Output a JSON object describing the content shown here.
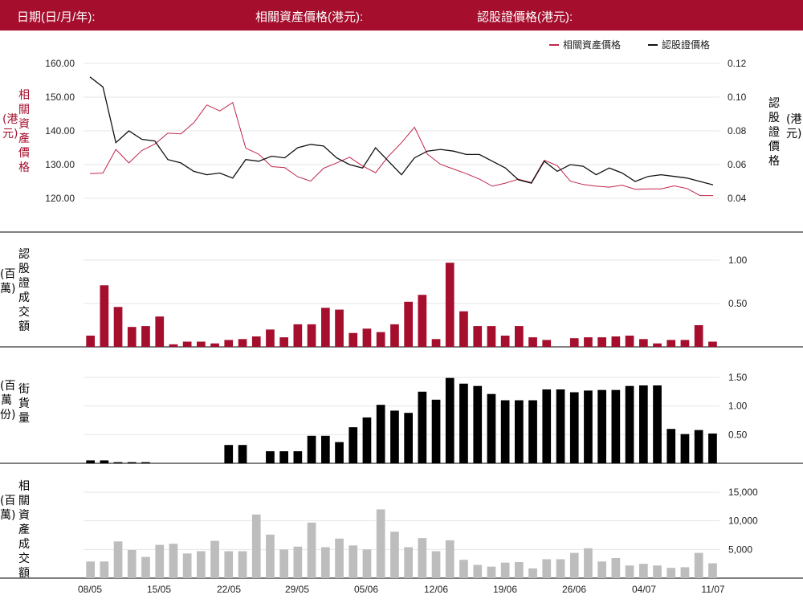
{
  "header": {
    "date_label": "日期(日/月/年):",
    "asset_price_label": "相關資產價格(港元):",
    "warrant_price_label": "認股證價格(港元):"
  },
  "colors": {
    "brand": "#a50e2d",
    "asset_line": "#c0264a",
    "warrant_line": "#111111",
    "outstanding_bar": "#000000",
    "asset_turnover_bar": "#bdbdbd"
  },
  "axis_titles": {
    "price_left": "相關資產價格",
    "price_left_unit": "(港元)",
    "price_right": "認股證價格",
    "price_right_unit": "(港元)",
    "warrant_turnover": "認股證成交額",
    "warrant_turnover_unit": "(百萬)",
    "outstanding": "街貨量",
    "outstanding_unit": "(百萬份)",
    "asset_turnover": "相關資產成交額",
    "asset_turnover_unit": "(百萬)"
  },
  "chart_data": [
    {
      "type": "line",
      "legend": [
        "相關資產價格",
        "認股證價格"
      ],
      "legend_position": "top-right",
      "x_tick_labels": [
        "08/05",
        "15/05",
        "22/05",
        "29/05",
        "05/06",
        "12/06",
        "19/06",
        "26/06",
        "04/07",
        "11/07"
      ],
      "y_left": {
        "ticks": [
          "120.00",
          "130.00",
          "140.00",
          "150.00",
          "160.00"
        ],
        "range": [
          117,
          162
        ]
      },
      "y_right": {
        "ticks": [
          "0.04",
          "0.06",
          "0.08",
          "0.10",
          "0.12"
        ],
        "range": [
          0.034,
          0.124
        ]
      },
      "series": [
        {
          "name": "相關資產價格",
          "axis": "left",
          "values": [
            127.3,
            127.5,
            134.5,
            130.5,
            134.2,
            136.1,
            139.3,
            139.1,
            142.4,
            147.7,
            145.9,
            148.4,
            134.9,
            133.1,
            129.4,
            129.1,
            126.4,
            125.1,
            128.9,
            130.5,
            132.2,
            129.6,
            127.6,
            132.5,
            136.5,
            141.1,
            133.1,
            130.1,
            128.7,
            127.3,
            125.7,
            123.6,
            124.5,
            125.7,
            124.7,
            131.3,
            129.7,
            125.1,
            124.1,
            123.6,
            123.3,
            123.9,
            122.7,
            122.8,
            122.8,
            123.7,
            122.9,
            120.8,
            120.8
          ]
        },
        {
          "name": "認股證價格",
          "axis": "right",
          "values": [
            0.112,
            0.106,
            0.073,
            0.08,
            0.075,
            0.074,
            0.063,
            0.061,
            0.056,
            0.054,
            0.055,
            0.052,
            0.063,
            0.062,
            0.065,
            0.064,
            0.07,
            0.072,
            0.071,
            0.064,
            0.06,
            0.058,
            0.07,
            0.062,
            0.054,
            0.064,
            0.068,
            0.069,
            0.068,
            0.066,
            0.066,
            0.062,
            0.058,
            0.051,
            0.049,
            0.062,
            0.056,
            0.06,
            0.059,
            0.054,
            0.058,
            0.055,
            0.05,
            0.053,
            0.054,
            0.053,
            0.052,
            0.05,
            0.048
          ]
        }
      ]
    },
    {
      "type": "bar",
      "name": "認股證成交額",
      "y_ticks": [
        "0.50",
        "1.00"
      ],
      "ylim": [
        0,
        1.1
      ],
      "values": [
        0.13,
        0.71,
        0.46,
        0.23,
        0.24,
        0.35,
        0.03,
        0.06,
        0.06,
        0.04,
        0.08,
        0.09,
        0.12,
        0.2,
        0.11,
        0.26,
        0.26,
        0.45,
        0.43,
        0.16,
        0.21,
        0.17,
        0.26,
        0.52,
        0.6,
        0.09,
        0.97,
        0.41,
        0.24,
        0.24,
        0.13,
        0.24,
        0.11,
        0.08,
        0.0,
        0.1,
        0.11,
        0.11,
        0.12,
        0.13,
        0.09,
        0.04,
        0.08,
        0.08,
        0.25,
        0.06
      ]
    },
    {
      "type": "bar",
      "name": "街貨量",
      "y_ticks": [
        "0.50",
        "1.00",
        "1.50"
      ],
      "ylim": [
        0,
        1.62
      ],
      "values": [
        0.05,
        0.05,
        0.02,
        0.02,
        0.02,
        0.0,
        0.0,
        0.0,
        0.0,
        0.0,
        0.32,
        0.32,
        0.0,
        0.21,
        0.21,
        0.21,
        0.48,
        0.48,
        0.37,
        0.63,
        0.8,
        1.02,
        0.92,
        0.88,
        1.25,
        1.11,
        1.49,
        1.39,
        1.35,
        1.21,
        1.1,
        1.1,
        1.1,
        1.29,
        1.29,
        1.24,
        1.27,
        1.28,
        1.28,
        1.35,
        1.36,
        1.36,
        0.6,
        0.51,
        0.58,
        0.52
      ]
    },
    {
      "type": "bar",
      "name": "相關資產成交額",
      "y_ticks": [
        "5,000",
        "10,000",
        "15,000"
      ],
      "ylim": [
        0,
        16600
      ],
      "values": [
        2900,
        2900,
        6400,
        4900,
        3700,
        5800,
        6000,
        4300,
        4700,
        6500,
        4700,
        4700,
        11100,
        7600,
        5000,
        5500,
        9700,
        5400,
        6900,
        5700,
        5000,
        12000,
        8100,
        5400,
        7000,
        4700,
        6600,
        3200,
        2300,
        2000,
        2700,
        2800,
        1700,
        3300,
        3300,
        4400,
        5200,
        2900,
        3500,
        2200,
        2500,
        2200,
        1800,
        1900,
        4400,
        2600
      ]
    }
  ]
}
